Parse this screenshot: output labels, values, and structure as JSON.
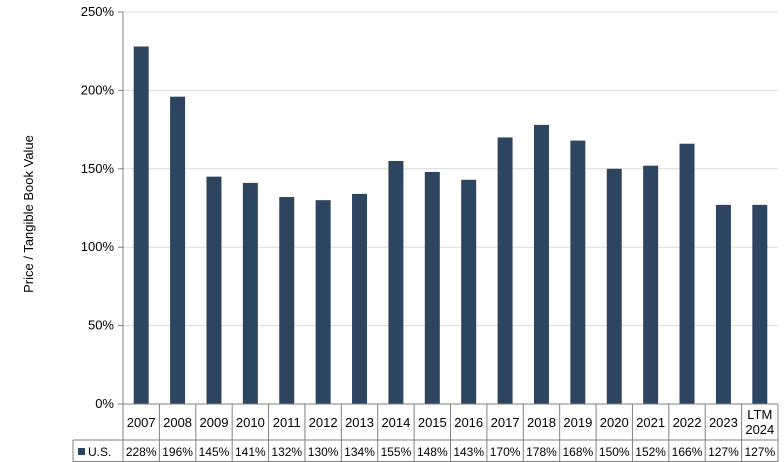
{
  "chart_data": {
    "type": "bar",
    "ylabel": "Price / Tangible Book Value",
    "ylim": [
      0,
      250
    ],
    "yticks": [
      0,
      50,
      100,
      150,
      200,
      250
    ],
    "ytick_labels": [
      "0%",
      "50%",
      "100%",
      "150%",
      "200%",
      "250%"
    ],
    "grid": true,
    "categories": [
      "2007",
      "2008",
      "2009",
      "2010",
      "2011",
      "2012",
      "2013",
      "2014",
      "2015",
      "2016",
      "2017",
      "2018",
      "2019",
      "2020",
      "2021",
      "2022",
      "2023",
      "LTM 2024"
    ],
    "category_lines": [
      [
        "2007"
      ],
      [
        "2008"
      ],
      [
        "2009"
      ],
      [
        "2010"
      ],
      [
        "2011"
      ],
      [
        "2012"
      ],
      [
        "2013"
      ],
      [
        "2014"
      ],
      [
        "2015"
      ],
      [
        "2016"
      ],
      [
        "2017"
      ],
      [
        "2018"
      ],
      [
        "2019"
      ],
      [
        "2020"
      ],
      [
        "2021"
      ],
      [
        "2022"
      ],
      [
        "2023"
      ],
      [
        "LTM",
        "2024"
      ]
    ],
    "series": [
      {
        "name": "U.S.",
        "values": [
          228,
          196,
          145,
          141,
          132,
          130,
          134,
          155,
          148,
          143,
          170,
          178,
          168,
          150,
          152,
          166,
          127,
          127
        ],
        "value_labels": [
          "228%",
          "196%",
          "145%",
          "141%",
          "132%",
          "130%",
          "134%",
          "155%",
          "148%",
          "143%",
          "170%",
          "178%",
          "168%",
          "150%",
          "152%",
          "166%",
          "127%",
          "127%"
        ]
      }
    ],
    "legend": "data-table-left",
    "colors": {
      "bar": "#2e4560",
      "grid": "#d9d9d9",
      "axis": "#808080",
      "table_border": "#808080"
    }
  }
}
